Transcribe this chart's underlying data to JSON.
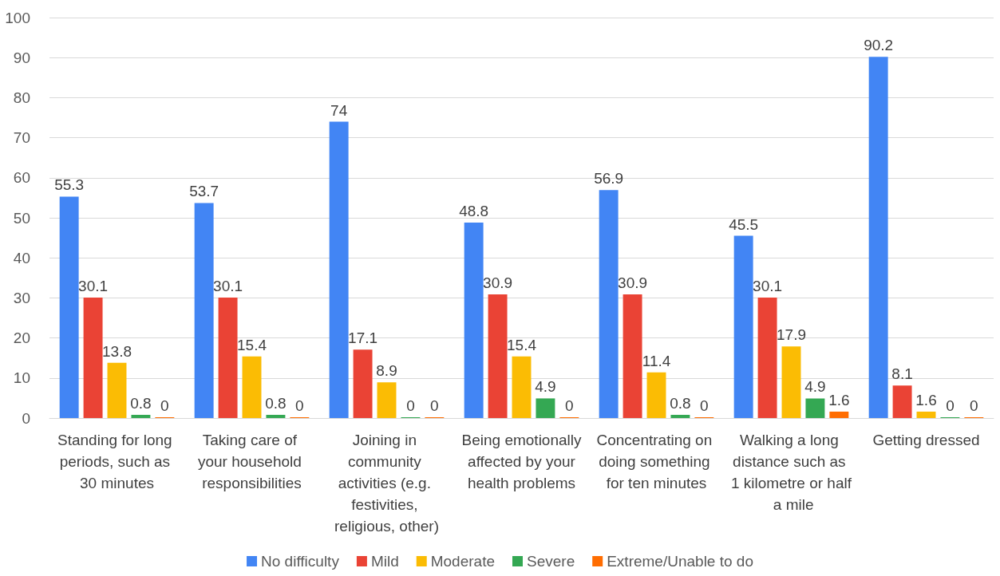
{
  "chart_data": {
    "type": "bar",
    "categories": [
      "Standing for long periods, such as 30 minutes",
      "Taking care of your household responsibilities",
      "Joining in community activities (e.g. festivities, religious, other)",
      "Being emotionally affected by your health problems",
      "Concentrating on doing something for ten minutes",
      "Walking a long distance such as 1 kilometre or half a mile",
      "Getting dressed"
    ],
    "series": [
      {
        "name": "No difficulty",
        "color": "#4285f4",
        "values": [
          55.3,
          53.7,
          74,
          48.8,
          56.9,
          45.5,
          90.2
        ]
      },
      {
        "name": "Mild",
        "color": "#ea4335",
        "values": [
          30.1,
          30.1,
          17.1,
          30.9,
          30.9,
          30.1,
          8.1
        ]
      },
      {
        "name": "Moderate",
        "color": "#fbbc04",
        "values": [
          13.8,
          15.4,
          8.9,
          15.4,
          11.4,
          17.9,
          1.6
        ]
      },
      {
        "name": "Severe",
        "color": "#34a853",
        "values": [
          0.8,
          0.8,
          0,
          4.9,
          0.8,
          4.9,
          0
        ]
      },
      {
        "name": "Extreme/Unable to do",
        "color": "#ff6d01",
        "values": [
          0,
          0,
          0,
          0,
          0,
          1.6,
          0
        ]
      }
    ],
    "ylim": [
      0,
      100
    ],
    "yticks": [
      0,
      10,
      20,
      30,
      40,
      50,
      60,
      70,
      80,
      90,
      100
    ],
    "grid": "y",
    "legend": "bottom",
    "data_labels": true
  }
}
